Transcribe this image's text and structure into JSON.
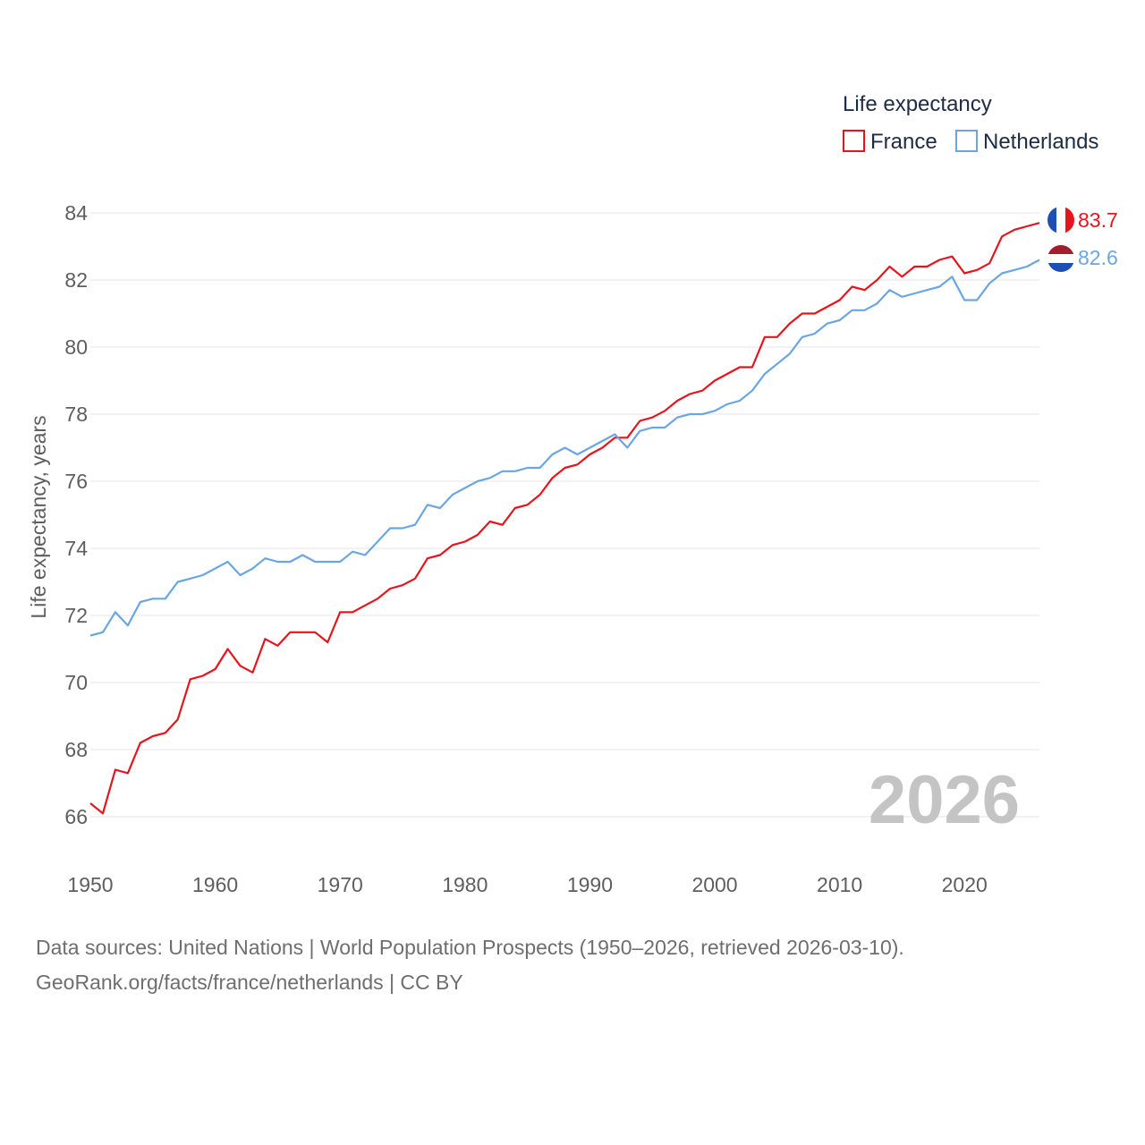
{
  "chart_data": {
    "type": "line",
    "title": "",
    "xlabel": "",
    "ylabel": "Life expectancy, years",
    "xlim": [
      1950,
      2026
    ],
    "ylim": [
      65,
      84.7
    ],
    "yticks": [
      66,
      68,
      70,
      72,
      74,
      76,
      78,
      80,
      82,
      84
    ],
    "xticks": [
      1950,
      1960,
      1970,
      1980,
      1990,
      2000,
      2010,
      2020
    ],
    "grid": true,
    "legend": {
      "title": "Life expectancy",
      "position": "top-right"
    },
    "year_label": "2026",
    "x": [
      1950,
      1951,
      1952,
      1953,
      1954,
      1955,
      1956,
      1957,
      1958,
      1959,
      1960,
      1961,
      1962,
      1963,
      1964,
      1965,
      1966,
      1967,
      1968,
      1969,
      1970,
      1971,
      1972,
      1973,
      1974,
      1975,
      1976,
      1977,
      1978,
      1979,
      1980,
      1981,
      1982,
      1983,
      1984,
      1985,
      1986,
      1987,
      1988,
      1989,
      1990,
      1991,
      1992,
      1993,
      1994,
      1995,
      1996,
      1997,
      1998,
      1999,
      2000,
      2001,
      2002,
      2003,
      2004,
      2005,
      2006,
      2007,
      2008,
      2009,
      2010,
      2011,
      2012,
      2013,
      2014,
      2015,
      2016,
      2017,
      2018,
      2019,
      2020,
      2021,
      2022,
      2023,
      2024,
      2025,
      2026
    ],
    "series": [
      {
        "name": "France",
        "color": "#e8141c",
        "end_label": "83.7",
        "flag": "france",
        "values": [
          66.4,
          66.1,
          67.4,
          67.3,
          68.2,
          68.4,
          68.5,
          68.9,
          70.1,
          70.2,
          70.4,
          71.0,
          70.5,
          70.3,
          71.3,
          71.1,
          71.5,
          71.5,
          71.5,
          71.2,
          72.1,
          72.1,
          72.3,
          72.5,
          72.8,
          72.9,
          73.1,
          73.7,
          73.8,
          74.1,
          74.2,
          74.4,
          74.8,
          74.7,
          75.2,
          75.3,
          75.6,
          76.1,
          76.4,
          76.5,
          76.8,
          77.0,
          77.3,
          77.3,
          77.8,
          77.9,
          78.1,
          78.4,
          78.6,
          78.7,
          79.0,
          79.2,
          79.4,
          79.4,
          80.3,
          80.3,
          80.7,
          81.0,
          81.0,
          81.2,
          81.4,
          81.8,
          81.7,
          82.0,
          82.4,
          82.1,
          82.4,
          82.4,
          82.6,
          82.7,
          82.2,
          82.3,
          82.5,
          83.3,
          83.5,
          83.6,
          83.7
        ]
      },
      {
        "name": "Netherlands",
        "color": "#6aa6e2",
        "end_label": "82.6",
        "flag": "netherlands",
        "values": [
          71.4,
          71.5,
          72.1,
          71.7,
          72.4,
          72.5,
          72.5,
          73.0,
          73.1,
          73.2,
          73.4,
          73.6,
          73.2,
          73.4,
          73.7,
          73.6,
          73.6,
          73.8,
          73.6,
          73.6,
          73.6,
          73.9,
          73.8,
          74.2,
          74.6,
          74.6,
          74.7,
          75.3,
          75.2,
          75.6,
          75.8,
          76.0,
          76.1,
          76.3,
          76.3,
          76.4,
          76.4,
          76.8,
          77.0,
          76.8,
          77.0,
          77.2,
          77.4,
          77.0,
          77.5,
          77.6,
          77.6,
          77.9,
          78.0,
          78.0,
          78.1,
          78.3,
          78.4,
          78.7,
          79.2,
          79.5,
          79.8,
          80.3,
          80.4,
          80.7,
          80.8,
          81.1,
          81.1,
          81.3,
          81.7,
          81.5,
          81.6,
          81.7,
          81.8,
          82.1,
          81.4,
          81.4,
          81.9,
          82.2,
          82.3,
          82.4,
          82.6
        ]
      }
    ]
  },
  "footer": {
    "source_line": "Data sources: United Nations | World Population Prospects (1950–2026, retrieved 2026-03-10).",
    "url_line": "GeoRank.org/facts/france/netherlands | CC BY"
  }
}
